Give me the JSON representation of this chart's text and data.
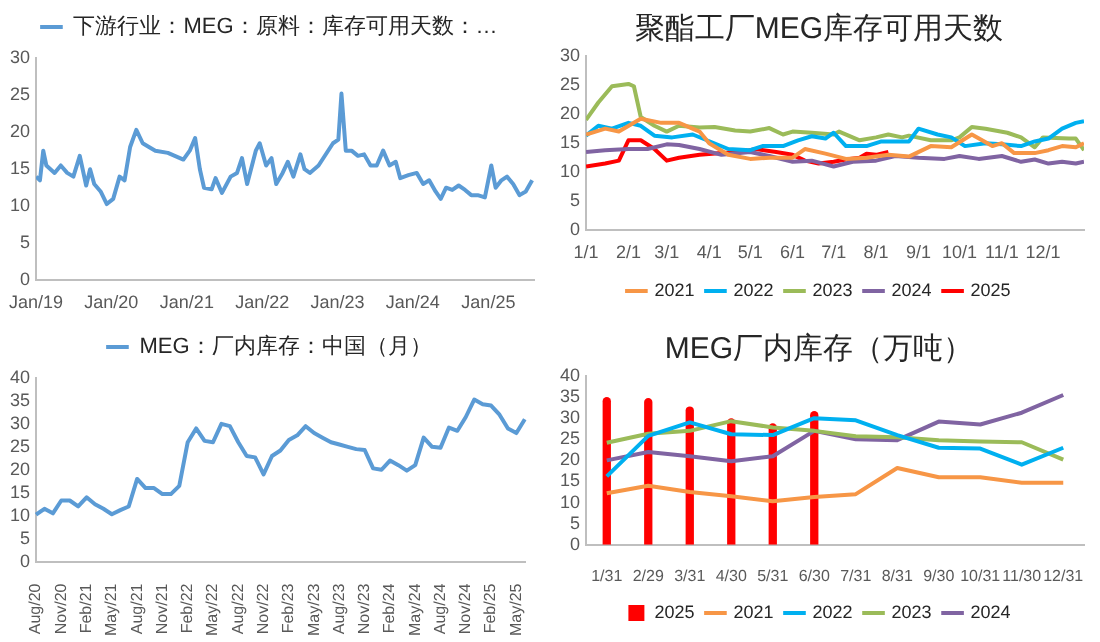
{
  "chart_data": [
    {
      "type": "line",
      "legend": "top",
      "marker": "none",
      "x": [
        "2019-01-01",
        "2019-01-20",
        "2019-02-05",
        "2019-02-20",
        "2019-04-01",
        "2019-05-01",
        "2019-06-01",
        "2019-07-01",
        "2019-08-01",
        "2019-09-01",
        "2019-09-20",
        "2019-10-10",
        "2019-11-10",
        "2019-12-10",
        "2020-01-10",
        "2020-02-10",
        "2020-03-05",
        "2020-04-01",
        "2020-05-01",
        "2020-06-01",
        "2020-07-01",
        "2020-08-01",
        "2020-10-01",
        "2020-12-15",
        "2021-01-15",
        "2021-02-10",
        "2021-03-05",
        "2021-03-25",
        "2021-05-01",
        "2021-05-20",
        "2021-06-20",
        "2021-08-01",
        "2021-09-01",
        "2021-09-25",
        "2021-10-20",
        "2021-12-01",
        "2021-12-20",
        "2022-01-20",
        "2022-02-15",
        "2022-03-10",
        "2022-04-10",
        "2022-05-05",
        "2022-06-01",
        "2022-07-05",
        "2022-07-25",
        "2022-08-20",
        "2022-10-01",
        "2022-12-10",
        "2023-01-05",
        "2023-01-20",
        "2023-02-10",
        "2023-03-10",
        "2023-04-10",
        "2023-05-10",
        "2023-06-10",
        "2023-07-10",
        "2023-08-10",
        "2023-09-10",
        "2023-10-10",
        "2023-11-01",
        "2023-12-10",
        "2024-01-20",
        "2024-02-20",
        "2024-03-20",
        "2024-04-20",
        "2024-05-15",
        "2024-06-10",
        "2024-07-10",
        "2024-08-10",
        "2024-09-10",
        "2024-10-10",
        "2024-11-10",
        "2024-12-15",
        "2025-01-15",
        "2025-02-05",
        "2025-03-05",
        "2025-04-01",
        "2025-05-01",
        "2025-06-01",
        "2025-07-01",
        "2025-08-01"
      ],
      "series": [
        {
          "name": "下游行业：MEG：原料：库存可用天数：…",
          "color": "#5b9bd5",
          "values": [
            14,
            13.5,
            17.5,
            15.5,
            14.5,
            15.5,
            14.5,
            14,
            16.8,
            12.8,
            15,
            13,
            12,
            10.3,
            11,
            14,
            13.5,
            18,
            20.3,
            18.5,
            18,
            17.5,
            17.2,
            16.3,
            17.5,
            19.2,
            15,
            12.5,
            12.3,
            13.8,
            11.8,
            14,
            14.5,
            16.5,
            13,
            17.5,
            18.5,
            15.5,
            16.5,
            13,
            14.5,
            16,
            14,
            17,
            15,
            14.5,
            15.5,
            18.5,
            19,
            25.2,
            17.5,
            17.5,
            16.8,
            17,
            15.5,
            15.5,
            17.5,
            15.5,
            16,
            13.8,
            14.2,
            14.5,
            13,
            13.5,
            12,
            11,
            12.5,
            12.2,
            12.8,
            12.2,
            11.5,
            11.5,
            11.2,
            15.5,
            12.5,
            13.5,
            14,
            13,
            11.5,
            12,
            13.5
          ]
        }
      ],
      "xlim": [
        "2019-01-01",
        "2025-08-10"
      ],
      "xticks": [
        {
          "value": "2019-01-01",
          "label": "Jan/19"
        },
        {
          "value": "2020-01-01",
          "label": "Jan/20"
        },
        {
          "value": "2021-01-01",
          "label": "Jan/21"
        },
        {
          "value": "2022-01-01",
          "label": "Jan/22"
        },
        {
          "value": "2023-01-01",
          "label": "Jan/23"
        },
        {
          "value": "2024-01-01",
          "label": "Jan/24"
        },
        {
          "value": "2025-01-01",
          "label": "Jan/25"
        }
      ],
      "ylim": [
        0,
        30
      ],
      "yticks": [
        0,
        5,
        10,
        15,
        20,
        25,
        30
      ]
    },
    {
      "type": "line",
      "title": "聚酯工厂MEG库存可用天数",
      "legend": "bottom",
      "marker": "none",
      "series": [
        {
          "name": "2021",
          "color": "#f79646",
          "x": [
            "--01-01",
            "--01-15",
            "--01-25",
            "--02-10",
            "--02-25",
            "--03-10",
            "--03-25",
            "--04-01",
            "--04-15",
            "--05-01",
            "--05-15",
            "--06-01",
            "--06-10",
            "--06-25",
            "--07-10",
            "--07-25",
            "--08-10",
            "--08-25",
            "--09-10",
            "--09-25",
            "--10-10",
            "--10-25",
            "--11-01",
            "--11-10",
            "--11-25",
            "--12-05",
            "--12-15",
            "--12-25",
            "--12-31"
          ],
          "values": [
            16.5,
            17.5,
            17,
            19.2,
            18.5,
            18.5,
            17,
            15,
            13,
            12.3,
            12.5,
            12.5,
            14,
            13.2,
            12.3,
            12.5,
            13,
            12.7,
            14.5,
            14.3,
            16.5,
            14.5,
            15,
            13.3,
            13.3,
            13.8,
            14.5,
            14.3,
            15
          ]
        },
        {
          "name": "2022",
          "color": "#00b0f0",
          "x": [
            "--01-01",
            "--01-10",
            "--01-20",
            "--02-01",
            "--02-10",
            "--02-20",
            "--03-05",
            "--03-20",
            "--04-15",
            "--05-01",
            "--05-10",
            "--05-25",
            "--06-05",
            "--06-15",
            "--06-25",
            "--07-01",
            "--07-10",
            "--07-25",
            "--08-05",
            "--08-25",
            "--09-01",
            "--09-15",
            "--09-25",
            "--10-05",
            "--10-20",
            "--11-01",
            "--11-15",
            "--11-25",
            "--12-05",
            "--12-15",
            "--12-25",
            "--12-31"
          ],
          "values": [
            16.3,
            18,
            17.5,
            18.5,
            18,
            16.3,
            16,
            16.5,
            14,
            13.8,
            14.5,
            14.5,
            15.5,
            16.2,
            15.8,
            16.8,
            14.5,
            14.5,
            15.3,
            15.3,
            17.5,
            16.5,
            16,
            14.5,
            15,
            14.8,
            14.5,
            15.3,
            15.8,
            17.5,
            18.5,
            18.8
          ]
        },
        {
          "name": "2023",
          "color": "#9bbb59",
          "x": [
            "--01-01",
            "--01-10",
            "--01-20",
            "--02-01",
            "--02-05",
            "--02-10",
            "--02-20",
            "--03-01",
            "--03-10",
            "--03-25",
            "--04-05",
            "--04-20",
            "--05-01",
            "--05-15",
            "--05-25",
            "--06-01",
            "--06-15",
            "--07-01",
            "--07-05",
            "--07-20",
            "--08-01",
            "--08-10",
            "--08-20",
            "--08-25",
            "--09-10",
            "--09-25",
            "--10-01",
            "--10-10",
            "--10-20",
            "--11-05",
            "--11-15",
            "--11-25",
            "--12-01",
            "--12-20",
            "--12-25",
            "--12-31"
          ],
          "values": [
            19,
            22,
            24.8,
            25.2,
            24.8,
            19.5,
            18,
            17,
            18,
            17.7,
            17.8,
            17.2,
            17,
            17.6,
            16.5,
            17,
            16.8,
            16.5,
            17,
            15.5,
            16,
            16.5,
            16,
            16.3,
            15.5,
            15.5,
            16,
            17.8,
            17.5,
            16.8,
            16,
            14.3,
            16,
            15.8,
            15.8,
            13.8
          ]
        },
        {
          "name": "2024",
          "color": "#8064a2",
          "x": [
            "--01-01",
            "--01-15",
            "--02-01",
            "--02-15",
            "--03-01",
            "--03-10",
            "--03-25",
            "--04-10",
            "--05-01",
            "--05-15",
            "--06-01",
            "--06-15",
            "--07-01",
            "--07-15",
            "--08-01",
            "--08-15",
            "--09-01",
            "--09-20",
            "--10-01",
            "--10-15",
            "--11-01",
            "--11-15",
            "--11-25",
            "--12-05",
            "--12-15",
            "--12-25",
            "--12-31"
          ],
          "values": [
            13.5,
            13.8,
            14,
            14,
            14.8,
            14.7,
            14,
            13,
            13.5,
            12.8,
            11.8,
            12,
            11,
            11.8,
            12,
            12.8,
            12.5,
            12.3,
            12.8,
            12.3,
            12.8,
            11.8,
            12.2,
            11.5,
            11.8,
            11.5,
            11.8
          ]
        },
        {
          "name": "2025",
          "color": "#ff0000",
          "x": [
            "--01-01",
            "--01-15",
            "--01-25",
            "--02-01",
            "--02-10",
            "--02-20",
            "--03-01",
            "--03-10",
            "--03-25",
            "--04-10",
            "--04-25",
            "--05-05",
            "--05-20",
            "--06-01",
            "--06-10",
            "--06-20",
            "--07-01",
            "--07-10",
            "--07-20",
            "--07-25",
            "--08-01",
            "--08-10"
          ],
          "values": [
            11,
            11.5,
            12,
            15.5,
            15.5,
            14,
            12,
            12.5,
            13,
            13.3,
            13.5,
            14,
            13.5,
            13,
            12,
            11.5,
            11.8,
            12.2,
            12.5,
            13.2,
            13,
            13.5
          ]
        }
      ],
      "xlim": [
        "--01-01",
        "--12-31"
      ],
      "xticks": [
        {
          "value": "--01-01",
          "label": "1/1"
        },
        {
          "value": "--02-01",
          "label": "2/1"
        },
        {
          "value": "--03-01",
          "label": "3/1"
        },
        {
          "value": "--04-01",
          "label": "4/1"
        },
        {
          "value": "--05-01",
          "label": "5/1"
        },
        {
          "value": "--06-01",
          "label": "6/1"
        },
        {
          "value": "--07-01",
          "label": "7/1"
        },
        {
          "value": "--08-01",
          "label": "8/1"
        },
        {
          "value": "--09-01",
          "label": "9/1"
        },
        {
          "value": "--10-01",
          "label": "10/1"
        },
        {
          "value": "--11-01",
          "label": "11/1"
        },
        {
          "value": "--12-01",
          "label": "12/1"
        }
      ],
      "ylim": [
        0,
        30
      ],
      "yticks": [
        0,
        5,
        10,
        15,
        20,
        25,
        30
      ]
    },
    {
      "type": "line",
      "legend": "top",
      "marker": "none",
      "categories": [
        "Aug/20",
        null,
        null,
        "Nov/20",
        null,
        null,
        "Feb/21",
        null,
        null,
        "May/21",
        null,
        null,
        "Aug/21",
        null,
        null,
        "Nov/21",
        null,
        null,
        "Feb/22",
        null,
        null,
        "May/22",
        null,
        null,
        "Aug/22",
        null,
        null,
        "Nov/22",
        null,
        null,
        "Feb/23",
        null,
        null,
        "May/23",
        null,
        null,
        "Aug/23",
        null,
        null,
        "Nov/23",
        null,
        null,
        "Feb/24",
        null,
        null,
        "May/24",
        null,
        null,
        "Aug/24",
        null,
        null,
        "Nov/24",
        null,
        null,
        "Feb/25",
        null,
        null,
        "May/25",
        null
      ],
      "series": [
        {
          "name": "MEG：厂内库存：中国（月）",
          "color": "#5b9bd5",
          "values": [
            10.2,
            11.5,
            10.5,
            13.3,
            13.3,
            12,
            14,
            12.5,
            11.5,
            10.3,
            11.2,
            12,
            18,
            16,
            16,
            14.7,
            14.7,
            16.5,
            26,
            29,
            26.3,
            26,
            30,
            29.5,
            26,
            23,
            22.7,
            19,
            23,
            24.2,
            26.5,
            27.5,
            29.5,
            28,
            27,
            26,
            25.5,
            25,
            24.5,
            24.3,
            20.3,
            20,
            22,
            21,
            19.8,
            21,
            27,
            25,
            24.8,
            29.2,
            28.5,
            31.5,
            35.3,
            34.3,
            34,
            32,
            29,
            28,
            31
          ]
        }
      ],
      "ylim": [
        0,
        40
      ],
      "yticks": [
        0,
        5,
        10,
        15,
        20,
        25,
        30,
        35,
        40
      ]
    },
    {
      "type": "line",
      "title": "MEG厂内库存（万吨）",
      "legend": "bottom",
      "marker": "none",
      "categories": [
        "1/31",
        "2/29",
        "3/31",
        "4/30",
        "5/31",
        "6/30",
        "7/31",
        "8/31",
        "9/30",
        "10/31",
        "11/30",
        "12/31"
      ],
      "series": [
        {
          "name": "2025",
          "type": "bar",
          "color": "#ff0000",
          "values": [
            35,
            34.8,
            32.8,
            30,
            28.8,
            31.7,
            null,
            null,
            null,
            null,
            null,
            null
          ]
        },
        {
          "name": "2021",
          "color": "#f79646",
          "values": [
            12.2,
            14,
            12.5,
            11.5,
            10.3,
            11.3,
            12,
            18.2,
            16,
            16,
            14.7,
            14.7
          ]
        },
        {
          "name": "2022",
          "color": "#00b0f0",
          "values": [
            16.2,
            25.8,
            29,
            26.2,
            26,
            30,
            29.5,
            26,
            23,
            22.8,
            19,
            23
          ]
        },
        {
          "name": "2023",
          "color": "#9bbb59",
          "values": [
            24.2,
            26.3,
            27,
            29.3,
            27.8,
            27,
            25.7,
            25.5,
            24.8,
            24.5,
            24.3,
            20.2
          ]
        },
        {
          "name": "2024",
          "color": "#8064a2",
          "values": [
            20,
            22,
            21,
            19.8,
            21,
            27,
            25,
            24.8,
            29.2,
            28.5,
            31.3,
            35.5
          ]
        }
      ],
      "ylim": [
        0,
        40
      ],
      "yticks": [
        0,
        5,
        10,
        15,
        20,
        25,
        30,
        35,
        40
      ]
    }
  ]
}
